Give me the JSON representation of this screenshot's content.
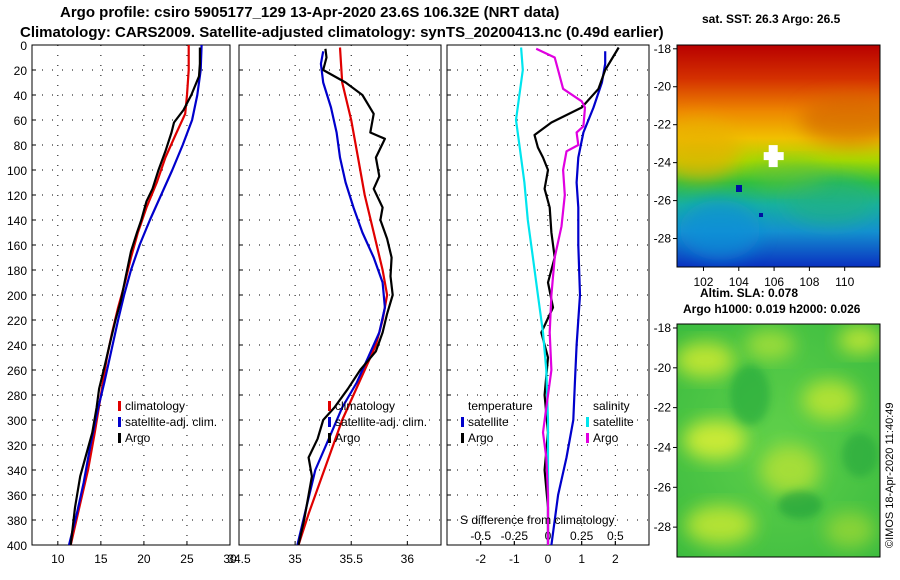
{
  "header": {
    "title_line1": "Argo profile: csiro 5905177_129 13-Apr-2020 23.6S 106.32E (NRT data)",
    "title_line2": "Climatology: CARS2009. Satellite-adjusted climatology: synTS_20200413.nc (0.49d earlier)"
  },
  "colors": {
    "climatology": "#e00000",
    "satellite": "#0000cc",
    "argo": "#000000",
    "satellite_salinity": "#00e5ee",
    "argo_salinity": "#e000e0"
  },
  "chart_data": [
    {
      "type": "line",
      "name": "temperature-profile",
      "xlim": [
        7,
        30
      ],
      "ylim": [
        400,
        0
      ],
      "xticks": [
        10,
        15,
        20,
        25,
        30
      ],
      "yticks": [
        0,
        20,
        40,
        60,
        80,
        100,
        120,
        140,
        160,
        180,
        200,
        220,
        240,
        260,
        280,
        300,
        320,
        340,
        360,
        380,
        400
      ],
      "legend": [
        "climatology",
        "satellite-adj. clim.",
        "Argo"
      ],
      "series": [
        {
          "name": "climatology",
          "color": "#e00000",
          "points": [
            [
              25.2,
              0
            ],
            [
              25.2,
              20
            ],
            [
              25.0,
              40
            ],
            [
              24.8,
              55
            ],
            [
              23.8,
              70
            ],
            [
              22.5,
              90
            ],
            [
              21.5,
              110
            ],
            [
              20.3,
              130
            ],
            [
              19.3,
              150
            ],
            [
              18.5,
              170
            ],
            [
              17.8,
              190
            ],
            [
              17.0,
              210
            ],
            [
              16.3,
              230
            ],
            [
              15.7,
              250
            ],
            [
              15.0,
              280
            ],
            [
              14.3,
              310
            ],
            [
              13.5,
              340
            ],
            [
              12.5,
              370
            ],
            [
              11.5,
              400
            ]
          ]
        },
        {
          "name": "satellite-adj. clim.",
          "color": "#0000cc",
          "points": [
            [
              26.7,
              0
            ],
            [
              26.6,
              20
            ],
            [
              26.2,
              40
            ],
            [
              25.6,
              60
            ],
            [
              24.5,
              80
            ],
            [
              23.3,
              100
            ],
            [
              22.0,
              120
            ],
            [
              20.7,
              140
            ],
            [
              19.5,
              160
            ],
            [
              18.5,
              180
            ],
            [
              17.7,
              200
            ],
            [
              17.0,
              220
            ],
            [
              16.2,
              245
            ],
            [
              15.4,
              270
            ],
            [
              14.7,
              290
            ],
            [
              13.8,
              320
            ],
            [
              13.0,
              350
            ],
            [
              12.2,
              375
            ],
            [
              11.3,
              400
            ]
          ]
        },
        {
          "name": "Argo",
          "color": "#000000",
          "points": [
            [
              26.5,
              2
            ],
            [
              26.5,
              15
            ],
            [
              26.4,
              25
            ],
            [
              25.5,
              40
            ],
            [
              24.6,
              52
            ],
            [
              23.5,
              62
            ],
            [
              23.2,
              70
            ],
            [
              22.5,
              85
            ],
            [
              21.7,
              100
            ],
            [
              21.0,
              115
            ],
            [
              20.3,
              125
            ],
            [
              19.7,
              140
            ],
            [
              19.2,
              150
            ],
            [
              18.5,
              165
            ],
            [
              17.9,
              185
            ],
            [
              17.3,
              205
            ],
            [
              16.7,
              220
            ],
            [
              16.0,
              240
            ],
            [
              15.5,
              255
            ],
            [
              14.8,
              275
            ],
            [
              14.5,
              290
            ],
            [
              14.0,
              310
            ],
            [
              13.4,
              325
            ],
            [
              12.6,
              345
            ],
            [
              12.0,
              370
            ],
            [
              11.5,
              400
            ]
          ]
        }
      ]
    },
    {
      "type": "line",
      "name": "salinity-profile",
      "xlim": [
        34.5,
        36.3
      ],
      "ylim": [
        400,
        0
      ],
      "xticks": [
        34.5,
        35,
        35.5,
        36
      ],
      "legend": [
        "climatology",
        "satellite-adj. clim.",
        "Argo"
      ],
      "series": [
        {
          "name": "climatology",
          "color": "#e00000",
          "points": [
            [
              35.4,
              2
            ],
            [
              35.42,
              30
            ],
            [
              35.5,
              60
            ],
            [
              35.56,
              90
            ],
            [
              35.62,
              120
            ],
            [
              35.7,
              150
            ],
            [
              35.78,
              180
            ],
            [
              35.82,
              200
            ],
            [
              35.78,
              220
            ],
            [
              35.72,
              240
            ],
            [
              35.62,
              260
            ],
            [
              35.52,
              280
            ],
            [
              35.42,
              300
            ],
            [
              35.32,
              325
            ],
            [
              35.22,
              350
            ],
            [
              35.12,
              375
            ],
            [
              35.03,
              400
            ]
          ]
        },
        {
          "name": "satellite-adj. clim.",
          "color": "#0000cc",
          "points": [
            [
              35.25,
              5
            ],
            [
              35.23,
              15
            ],
            [
              35.25,
              30
            ],
            [
              35.32,
              50
            ],
            [
              35.37,
              70
            ],
            [
              35.4,
              90
            ],
            [
              35.45,
              110
            ],
            [
              35.52,
              130
            ],
            [
              35.6,
              150
            ],
            [
              35.7,
              170
            ],
            [
              35.78,
              190
            ],
            [
              35.8,
              210
            ],
            [
              35.75,
              230
            ],
            [
              35.65,
              250
            ],
            [
              35.55,
              270
            ],
            [
              35.42,
              290
            ],
            [
              35.3,
              315
            ],
            [
              35.18,
              340
            ],
            [
              35.1,
              370
            ],
            [
              35.02,
              400
            ]
          ]
        },
        {
          "name": "Argo",
          "color": "#000000",
          "points": [
            [
              35.27,
              3
            ],
            [
              35.28,
              10
            ],
            [
              35.25,
              20
            ],
            [
              35.45,
              30
            ],
            [
              35.6,
              40
            ],
            [
              35.7,
              55
            ],
            [
              35.67,
              70
            ],
            [
              35.8,
              75
            ],
            [
              35.72,
              90
            ],
            [
              35.75,
              105
            ],
            [
              35.7,
              115
            ],
            [
              35.78,
              130
            ],
            [
              35.76,
              140
            ],
            [
              35.82,
              155
            ],
            [
              35.86,
              170
            ],
            [
              35.85,
              185
            ],
            [
              35.87,
              200
            ],
            [
              35.82,
              215
            ],
            [
              35.78,
              230
            ],
            [
              35.72,
              245
            ],
            [
              35.58,
              260
            ],
            [
              35.47,
              275
            ],
            [
              35.35,
              290
            ],
            [
              35.25,
              300
            ],
            [
              35.2,
              315
            ],
            [
              35.12,
              330
            ],
            [
              35.15,
              345
            ],
            [
              35.12,
              360
            ],
            [
              35.08,
              380
            ],
            [
              35.03,
              400
            ]
          ]
        }
      ]
    },
    {
      "type": "line",
      "name": "difference-from-climatology",
      "xlim": [
        -3,
        3
      ],
      "ylim": [
        400,
        0
      ],
      "xticks": [
        -2,
        -1,
        0,
        1,
        2
      ],
      "xlabel": "S difference from climatology",
      "salinity_ticks": [
        -0.5,
        -0.25,
        0,
        0.25,
        0.5
      ],
      "legend": {
        "temperature": [
          "satellite",
          "Argo"
        ],
        "salinity": [
          "satellite",
          "Argo"
        ]
      },
      "series": [
        {
          "name": "temperature satellite",
          "color": "#0000cc",
          "points": [
            [
              1.7,
              5
            ],
            [
              1.7,
              15
            ],
            [
              1.6,
              30
            ],
            [
              1.35,
              50
            ],
            [
              1.05,
              70
            ],
            [
              0.9,
              90
            ],
            [
              0.85,
              110
            ],
            [
              0.9,
              130
            ],
            [
              0.9,
              160
            ],
            [
              0.95,
              200
            ],
            [
              0.85,
              240
            ],
            [
              0.8,
              270
            ],
            [
              0.75,
              300
            ],
            [
              0.55,
              330
            ],
            [
              0.3,
              360
            ],
            [
              0.1,
              400
            ]
          ]
        },
        {
          "name": "temperature Argo",
          "color": "#000000",
          "points": [
            [
              2.1,
              2
            ],
            [
              1.7,
              20
            ],
            [
              1.5,
              35
            ],
            [
              1.0,
              50
            ],
            [
              0.1,
              62
            ],
            [
              -0.4,
              72
            ],
            [
              -0.3,
              82
            ],
            [
              -0.15,
              90
            ],
            [
              0.0,
              100
            ],
            [
              -0.1,
              115
            ],
            [
              0.05,
              130
            ],
            [
              0.1,
              150
            ],
            [
              0.2,
              170
            ],
            [
              0.0,
              190
            ],
            [
              0.15,
              210
            ],
            [
              -0.2,
              230
            ],
            [
              0.0,
              250
            ],
            [
              -0.1,
              280
            ],
            [
              0.0,
              310
            ],
            [
              -0.1,
              340
            ],
            [
              0.0,
              370
            ],
            [
              0.0,
              400
            ]
          ]
        },
        {
          "name": "salinity satellite",
          "color": "#00e5ee",
          "points": [
            [
              -0.8,
              2
            ],
            [
              -0.75,
              20
            ],
            [
              -0.85,
              40
            ],
            [
              -0.95,
              60
            ],
            [
              -0.85,
              80
            ],
            [
              -0.7,
              110
            ],
            [
              -0.6,
              140
            ],
            [
              -0.45,
              170
            ],
            [
              -0.3,
              200
            ],
            [
              -0.15,
              230
            ],
            [
              -0.05,
              260
            ],
            [
              0.0,
              300
            ],
            [
              0.0,
              350
            ],
            [
              0.0,
              400
            ]
          ]
        },
        {
          "name": "salinity Argo",
          "color": "#e000e0",
          "points": [
            [
              -0.35,
              3
            ],
            [
              0.2,
              10
            ],
            [
              0.3,
              20
            ],
            [
              0.45,
              35
            ],
            [
              1.0,
              45
            ],
            [
              1.1,
              50
            ],
            [
              1.05,
              65
            ],
            [
              0.85,
              70
            ],
            [
              0.9,
              80
            ],
            [
              0.55,
              85
            ],
            [
              0.45,
              100
            ],
            [
              0.5,
              120
            ],
            [
              0.4,
              145
            ],
            [
              0.2,
              170
            ],
            [
              0.1,
              200
            ],
            [
              0.05,
              230
            ],
            [
              0.1,
              260
            ],
            [
              -0.05,
              290
            ],
            [
              -0.15,
              310
            ],
            [
              -0.05,
              330
            ],
            [
              0.0,
              360
            ],
            [
              0.0,
              400
            ]
          ]
        }
      ]
    },
    {
      "type": "heatmap",
      "name": "sst-map",
      "title": "sat. SST: 26.3 Argo: 26.5",
      "xlim": [
        100.5,
        112
      ],
      "ylim": [
        -29.5,
        -17.8
      ],
      "xticks": [
        102,
        104,
        106,
        108,
        110
      ],
      "yticks": [
        -28,
        -26,
        -24,
        -22,
        -20,
        -18
      ],
      "profile_location": [
        106.32,
        -23.6
      ]
    },
    {
      "type": "heatmap",
      "name": "sla-map",
      "title": "Altim. SLA: 0.078",
      "subtitle": "Argo h1000: 0.019 h2000: 0.026",
      "xlim": [
        100.5,
        112
      ],
      "ylim": [
        -29.5,
        -17.8
      ],
      "yticks": [
        -28,
        -26,
        -24,
        -22,
        -20,
        -18
      ],
      "credit": "©IMOS 18-Apr-2020 11:40:49"
    }
  ]
}
